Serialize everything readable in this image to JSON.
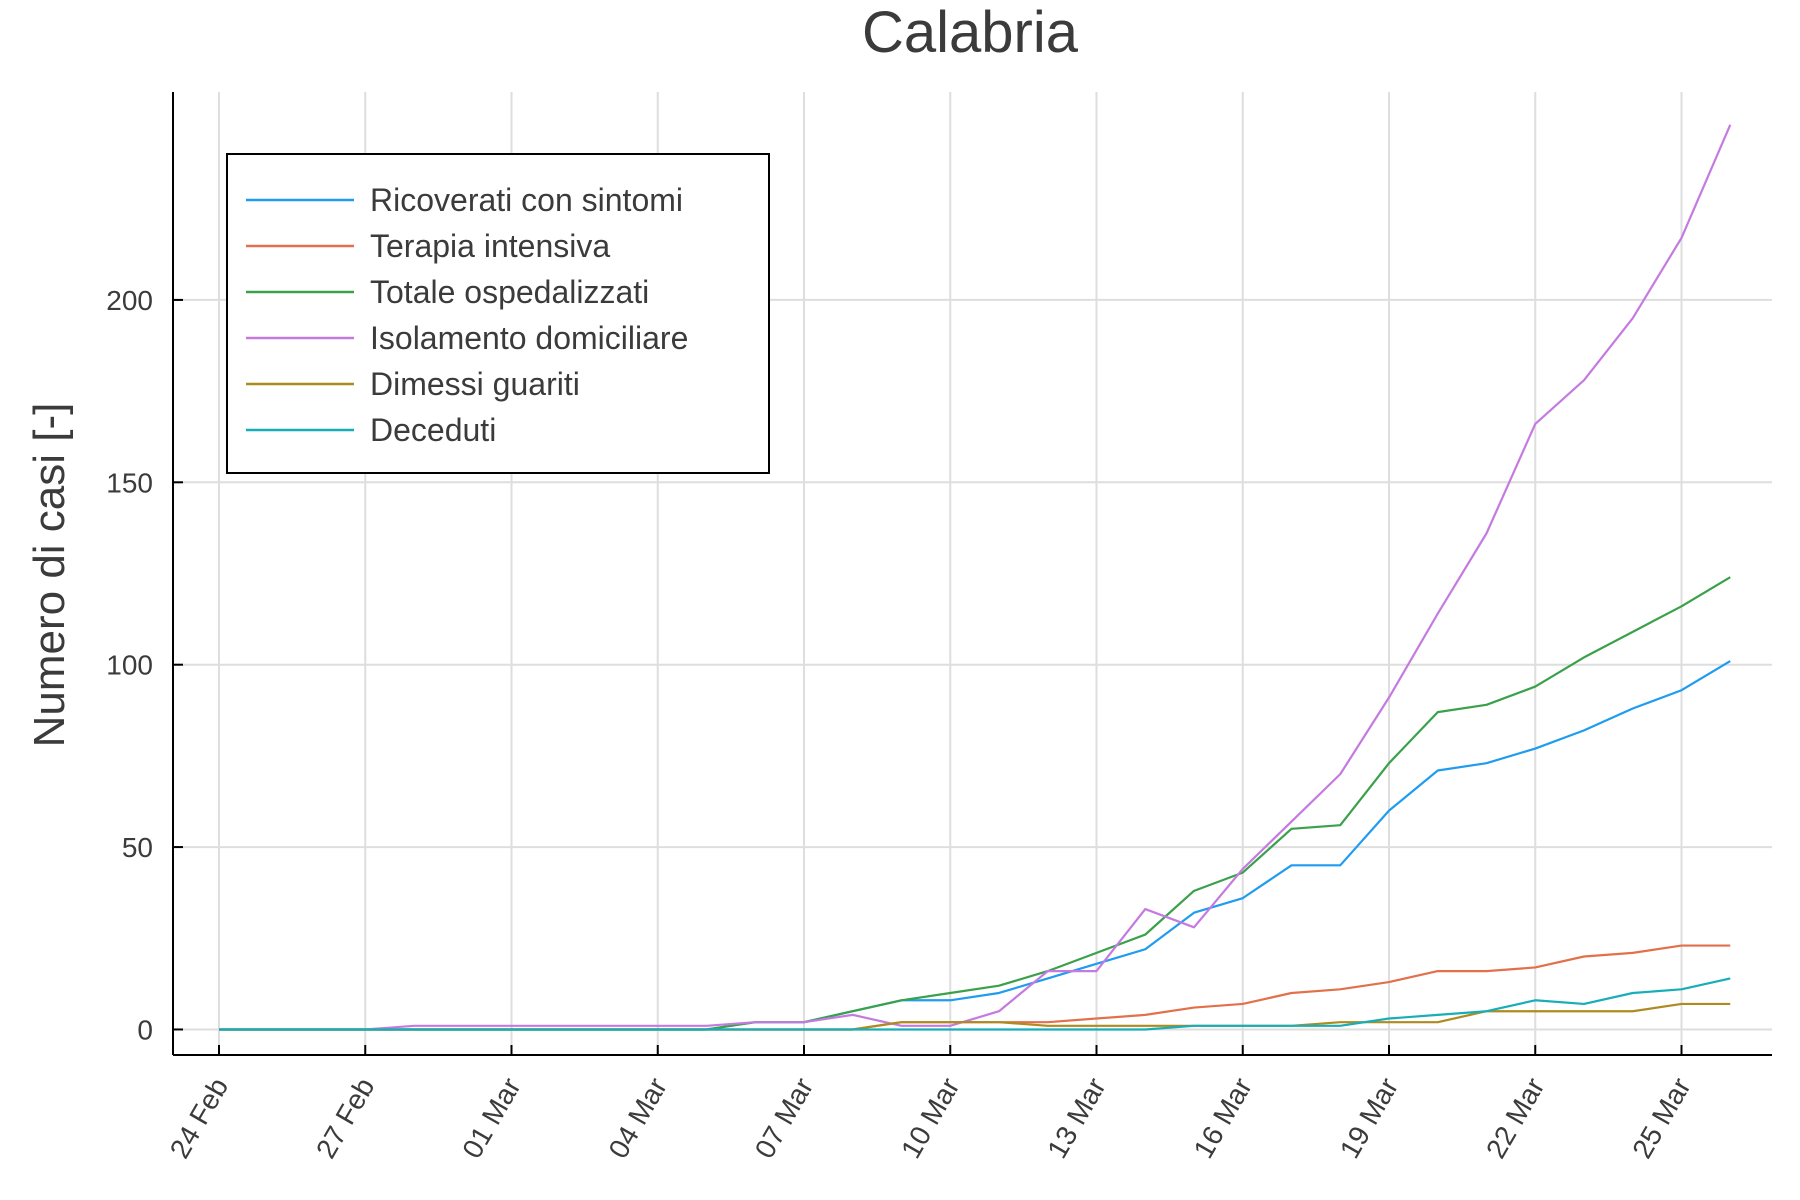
{
  "chart_data": {
    "type": "line",
    "title": "Calabria",
    "xlabel": "",
    "ylabel": "Numero di casi [-]",
    "x": [
      "24 Feb",
      "25 Feb",
      "26 Feb",
      "27 Feb",
      "28 Feb",
      "29 Feb",
      "01 Mar",
      "02 Mar",
      "03 Mar",
      "04 Mar",
      "05 Mar",
      "06 Mar",
      "07 Mar",
      "08 Mar",
      "09 Mar",
      "10 Mar",
      "11 Mar",
      "12 Mar",
      "13 Mar",
      "14 Mar",
      "15 Mar",
      "16 Mar",
      "17 Mar",
      "18 Mar",
      "19 Mar",
      "20 Mar",
      "21 Mar",
      "22 Mar",
      "23 Mar",
      "24 Mar",
      "25 Mar",
      "26 Mar"
    ],
    "xticks": [
      "24 Feb",
      "27 Feb",
      "01 Mar",
      "04 Mar",
      "07 Mar",
      "10 Mar",
      "13 Mar",
      "16 Mar",
      "19 Mar",
      "22 Mar",
      "25 Mar"
    ],
    "yticks": [
      0,
      50,
      100,
      150,
      200
    ],
    "ylim": [
      -7,
      257
    ],
    "grid": true,
    "legend_position": "top-left",
    "series": [
      {
        "name": "Ricoverati con sintomi",
        "color": "#1f9cf0",
        "values": [
          0,
          0,
          0,
          0,
          0,
          0,
          0,
          0,
          0,
          0,
          0,
          2,
          2,
          5,
          8,
          8,
          10,
          14,
          18,
          22,
          32,
          36,
          45,
          45,
          60,
          71,
          73,
          77,
          82,
          88,
          93,
          101
        ]
      },
      {
        "name": "Terapia intensiva",
        "color": "#e2704a",
        "values": [
          0,
          0,
          0,
          0,
          0,
          0,
          0,
          0,
          0,
          0,
          0,
          0,
          0,
          0,
          2,
          2,
          2,
          2,
          3,
          4,
          6,
          7,
          10,
          11,
          13,
          16,
          16,
          17,
          20,
          21,
          23,
          23
        ]
      },
      {
        "name": "Totale ospedalizzati",
        "color": "#3aa14a",
        "values": [
          0,
          0,
          0,
          0,
          0,
          0,
          0,
          0,
          0,
          0,
          0,
          2,
          2,
          5,
          8,
          10,
          12,
          16,
          21,
          26,
          38,
          43,
          55,
          56,
          73,
          87,
          89,
          94,
          102,
          109,
          116,
          124
        ]
      },
      {
        "name": "Isolamento domiciliare",
        "color": "#c57ae0",
        "values": [
          0,
          0,
          0,
          0,
          1,
          1,
          1,
          1,
          1,
          1,
          1,
          2,
          2,
          4,
          1,
          1,
          5,
          16,
          16,
          33,
          28,
          44,
          57,
          70,
          91,
          114,
          136,
          166,
          178,
          195,
          217,
          248
        ]
      },
      {
        "name": "Dimessi guariti",
        "color": "#ad8b1e",
        "values": [
          0,
          0,
          0,
          0,
          0,
          0,
          0,
          0,
          0,
          0,
          0,
          0,
          0,
          0,
          2,
          2,
          2,
          1,
          1,
          1,
          1,
          1,
          1,
          2,
          2,
          2,
          5,
          5,
          5,
          5,
          7,
          7
        ]
      },
      {
        "name": "Deceduti",
        "color": "#18aeb8",
        "values": [
          0,
          0,
          0,
          0,
          0,
          0,
          0,
          0,
          0,
          0,
          0,
          0,
          0,
          0,
          0,
          0,
          0,
          0,
          0,
          0,
          1,
          1,
          1,
          1,
          3,
          4,
          5,
          8,
          7,
          10,
          11,
          14
        ]
      }
    ]
  }
}
